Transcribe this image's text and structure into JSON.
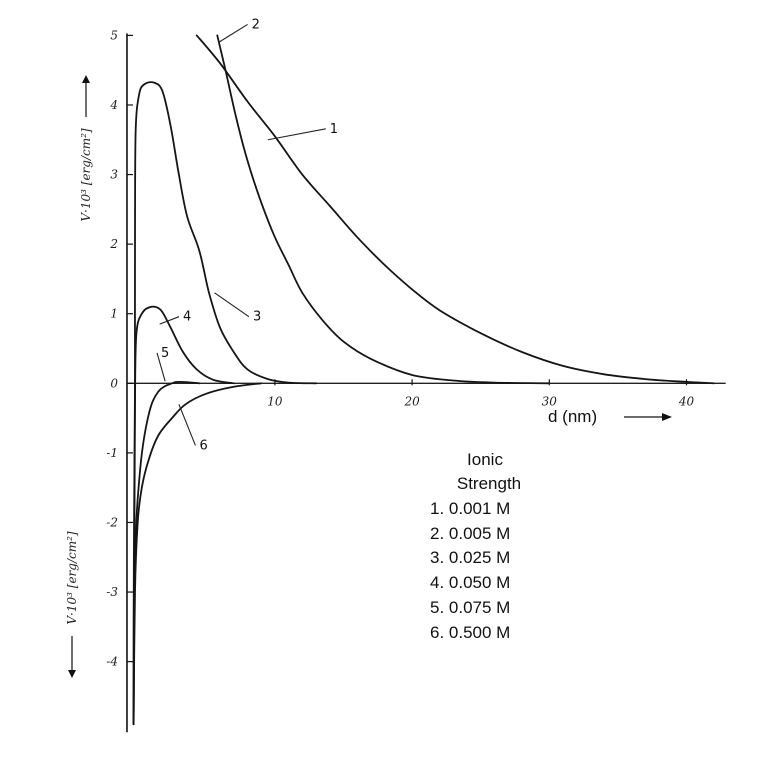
{
  "chart_data": {
    "type": "line",
    "xlabel": "d (nm)",
    "ylabel_upper": "V·10³ [erg/cm²]",
    "ylabel_lower": "V·10³ [erg/cm²]",
    "xlim": [
      -1,
      43
    ],
    "ylim": [
      -4.9,
      5
    ],
    "x_ticks": [
      {
        "value": 10,
        "label": "10"
      },
      {
        "value": 20,
        "label": "20"
      },
      {
        "value": 30,
        "label": "30"
      },
      {
        "value": 40,
        "label": "40"
      }
    ],
    "y_ticks": [
      {
        "value": 5,
        "label": "5"
      },
      {
        "value": 4,
        "label": "4"
      },
      {
        "value": 3,
        "label": "3"
      },
      {
        "value": 2,
        "label": "2"
      },
      {
        "value": 1,
        "label": "1"
      },
      {
        "value": 0,
        "label": "0"
      },
      {
        "value": -1,
        "label": "-1"
      },
      {
        "value": -2,
        "label": "-2"
      },
      {
        "value": -3,
        "label": "-3"
      },
      {
        "value": -4,
        "label": "-4"
      }
    ],
    "legend": {
      "title_lines": [
        "Ionic",
        "Strength"
      ],
      "entries": [
        "1. 0.001 M",
        "2. 0.005 M",
        "3. 0.025 M",
        "4. 0.050 M",
        "5. 0.075 M",
        "6. 0.500 M"
      ],
      "placement": "lower-right"
    },
    "series": [
      {
        "label": "1",
        "points": [
          [
            4.3,
            5.0
          ],
          [
            6,
            4.6
          ],
          [
            8,
            4.05
          ],
          [
            10,
            3.55
          ],
          [
            12,
            3.0
          ],
          [
            14,
            2.55
          ],
          [
            16,
            2.1
          ],
          [
            18,
            1.7
          ],
          [
            20,
            1.35
          ],
          [
            22,
            1.05
          ],
          [
            25,
            0.72
          ],
          [
            28,
            0.45
          ],
          [
            31,
            0.25
          ],
          [
            34,
            0.13
          ],
          [
            37,
            0.06
          ],
          [
            40,
            0.02
          ],
          [
            42,
            0.0
          ]
        ]
      },
      {
        "label": "2",
        "points": [
          [
            5.8,
            5.0
          ],
          [
            6.4,
            4.5
          ],
          [
            7.2,
            3.8
          ],
          [
            8,
            3.2
          ],
          [
            9,
            2.6
          ],
          [
            10,
            2.1
          ],
          [
            11,
            1.7
          ],
          [
            12,
            1.3
          ],
          [
            13.5,
            0.9
          ],
          [
            15,
            0.6
          ],
          [
            17,
            0.35
          ],
          [
            20,
            0.12
          ],
          [
            23,
            0.04
          ],
          [
            26,
            0.01
          ],
          [
            30,
            0.0
          ]
        ]
      },
      {
        "label": "3",
        "points": [
          [
            -0.3,
            -4.9
          ],
          [
            -0.3,
            -3.5
          ],
          [
            -0.25,
            -1.5
          ],
          [
            -0.2,
            0.0
          ],
          [
            -0.2,
            2.0
          ],
          [
            -0.15,
            3.6
          ],
          [
            0.1,
            4.15
          ],
          [
            0.5,
            4.3
          ],
          [
            1.2,
            4.32
          ],
          [
            1.8,
            4.2
          ],
          [
            2.4,
            3.7
          ],
          [
            3.0,
            3.0
          ],
          [
            3.6,
            2.4
          ],
          [
            4.5,
            1.9
          ],
          [
            5.2,
            1.3
          ],
          [
            6,
            0.8
          ],
          [
            7,
            0.45
          ],
          [
            8,
            0.2
          ],
          [
            9.5,
            0.06
          ],
          [
            11,
            0.01
          ],
          [
            13,
            0.0
          ]
        ]
      },
      {
        "label": "4",
        "points": [
          [
            -0.3,
            -4.9
          ],
          [
            -0.25,
            -2.5
          ],
          [
            -0.2,
            -0.3
          ],
          [
            -0.1,
            0.7
          ],
          [
            0.3,
            1.0
          ],
          [
            1.0,
            1.1
          ],
          [
            1.7,
            1.05
          ],
          [
            2.4,
            0.8
          ],
          [
            3.3,
            0.45
          ],
          [
            4.3,
            0.2
          ],
          [
            5.5,
            0.05
          ],
          [
            7,
            0.0
          ]
        ]
      },
      {
        "label": "5",
        "points": [
          [
            -0.3,
            -4.9
          ],
          [
            -0.2,
            -2.5
          ],
          [
            0.2,
            -1.2
          ],
          [
            0.8,
            -0.45
          ],
          [
            1.5,
            -0.12
          ],
          [
            2.5,
            0.0
          ],
          [
            3.2,
            0.02
          ],
          [
            4.5,
            0.0
          ]
        ]
      },
      {
        "label": "6",
        "points": [
          [
            -0.3,
            -4.9
          ],
          [
            -0.2,
            -3.0
          ],
          [
            0,
            -2.0
          ],
          [
            0.3,
            -1.5
          ],
          [
            0.8,
            -1.1
          ],
          [
            1.5,
            -0.75
          ],
          [
            2.5,
            -0.5
          ],
          [
            3.5,
            -0.3
          ],
          [
            5,
            -0.15
          ],
          [
            7,
            -0.05
          ],
          [
            9,
            0.0
          ]
        ]
      }
    ],
    "curve_labels": [
      {
        "label": "1",
        "x": 9.5,
        "y": 3.5,
        "text_dx": 4.5,
        "text_dy": 0.1
      },
      {
        "label": "2",
        "x": 5.9,
        "y": 4.9,
        "text_dx": 2.4,
        "text_dy": 0.2
      },
      {
        "label": "3",
        "x": 5.6,
        "y": 1.3,
        "text_dx": 2.8,
        "text_dy": -0.4
      },
      {
        "label": "4",
        "x": 1.6,
        "y": 0.85,
        "text_dx": 1.7,
        "text_dy": 0.05
      },
      {
        "label": "5",
        "x": 2.0,
        "y": 0.03,
        "text_dx": -0.3,
        "text_dy": 0.35
      },
      {
        "label": "6",
        "x": 3.0,
        "y": -0.3,
        "text_dx": 1.5,
        "text_dy": -0.65
      }
    ]
  }
}
